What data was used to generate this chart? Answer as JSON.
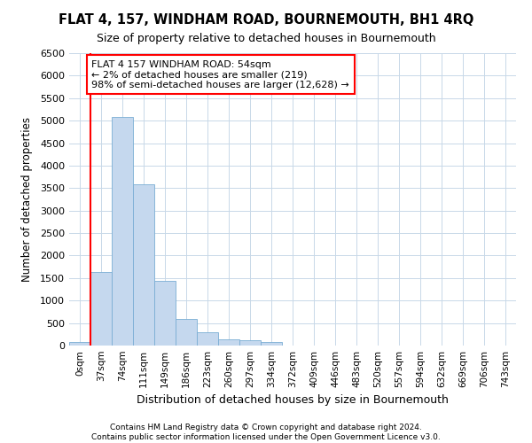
{
  "title": "FLAT 4, 157, WINDHAM ROAD, BOURNEMOUTH, BH1 4RQ",
  "subtitle": "Size of property relative to detached houses in Bournemouth",
  "xlabel": "Distribution of detached houses by size in Bournemouth",
  "ylabel": "Number of detached properties",
  "bar_color": "#c5d8ee",
  "bar_edge_color": "#7aadd4",
  "categories": [
    "0sqm",
    "37sqm",
    "74sqm",
    "111sqm",
    "149sqm",
    "186sqm",
    "223sqm",
    "260sqm",
    "297sqm",
    "334sqm",
    "372sqm",
    "409sqm",
    "446sqm",
    "483sqm",
    "520sqm",
    "557sqm",
    "594sqm",
    "632sqm",
    "669sqm",
    "706sqm",
    "743sqm"
  ],
  "values": [
    75,
    1640,
    5080,
    3580,
    1430,
    590,
    300,
    145,
    120,
    75,
    0,
    0,
    0,
    0,
    0,
    0,
    0,
    0,
    0,
    0,
    0
  ],
  "ylim": [
    0,
    6500
  ],
  "yticks": [
    0,
    500,
    1000,
    1500,
    2000,
    2500,
    3000,
    3500,
    4000,
    4500,
    5000,
    5500,
    6000,
    6500
  ],
  "property_line_color": "red",
  "annotation_text": "FLAT 4 157 WINDHAM ROAD: 54sqm\n← 2% of detached houses are smaller (219)\n98% of semi-detached houses are larger (12,628) →",
  "annotation_box_facecolor": "white",
  "annotation_box_edgecolor": "red",
  "grid_color": "#c8d8e8",
  "background_color": "white",
  "footer_line1": "Contains HM Land Registry data © Crown copyright and database right 2024.",
  "footer_line2": "Contains public sector information licensed under the Open Government Licence v3.0."
}
